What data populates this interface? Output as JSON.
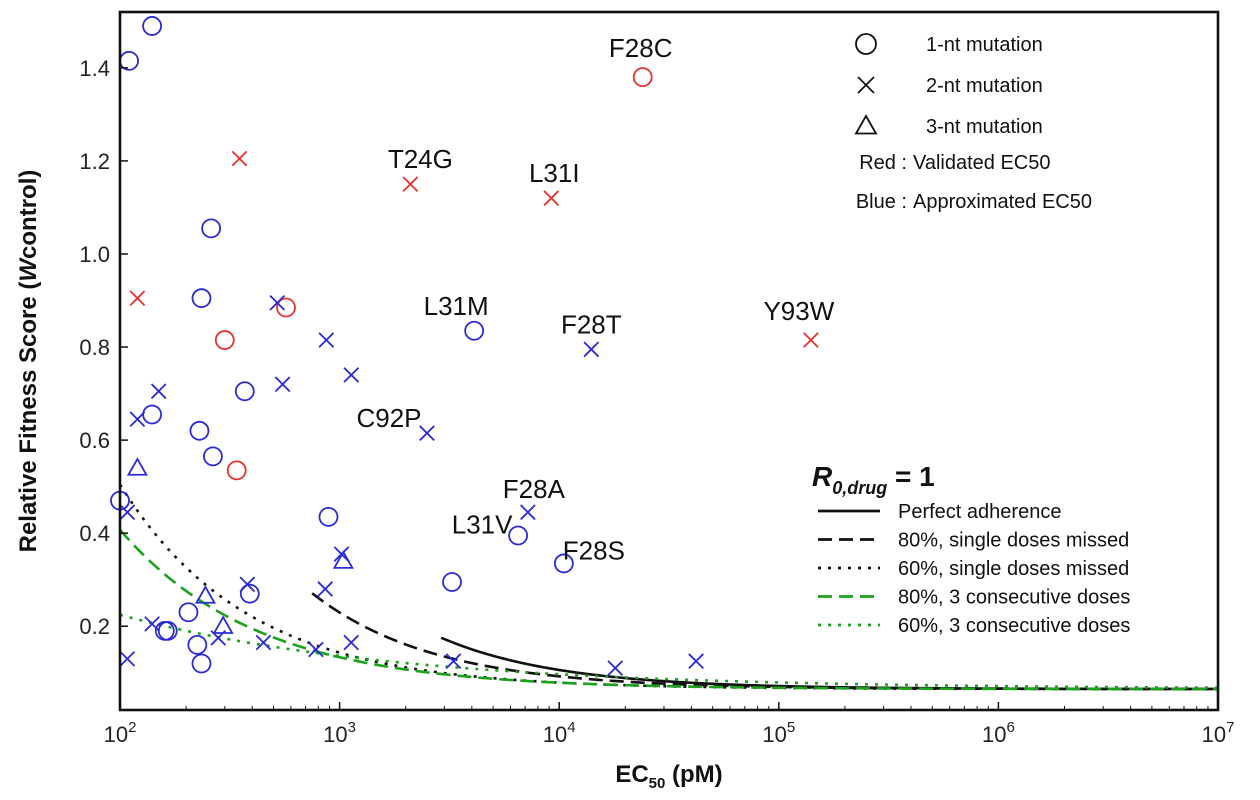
{
  "chart_data": {
    "type": "scatter",
    "x_scale": "log",
    "xlim": [
      100,
      10000000
    ],
    "ylim": [
      0.02,
      1.52
    ],
    "x_ticks": [
      {
        "value": 100,
        "base": "10",
        "exp": "2"
      },
      {
        "value": 1000,
        "base": "10",
        "exp": "3"
      },
      {
        "value": 10000,
        "base": "10",
        "exp": "4"
      },
      {
        "value": 100000,
        "base": "10",
        "exp": "5"
      },
      {
        "value": 1000000,
        "base": "10",
        "exp": "6"
      },
      {
        "value": 10000000,
        "base": "10",
        "exp": "7"
      }
    ],
    "y_ticks": [
      "0.2",
      "0.4",
      "0.6",
      "0.8",
      "1.0",
      "1.2",
      "1.4"
    ],
    "xlabel": {
      "main": "EC",
      "sub": "50",
      "unit": " (pM)"
    },
    "ylabel": {
      "pre": "Relative Fitness Score (",
      "italic": "W",
      "post": "control)"
    },
    "colors": {
      "validated": "#e8322f",
      "approximated": "#2b2bd6",
      "green": "#1aa31a",
      "black": "#111111"
    },
    "marker_legend": [
      {
        "marker": "circle",
        "label": "1-nt mutation"
      },
      {
        "marker": "cross",
        "label": "2-nt mutation"
      },
      {
        "marker": "triangle",
        "label": "3-nt mutation"
      }
    ],
    "color_legend": [
      {
        "key": "Red :",
        "label": "Validated EC50",
        "color": "validated"
      },
      {
        "key": "Blue :",
        "label": "Approximated EC50",
        "color": "approximated"
      }
    ],
    "curve_legend_title": {
      "main": "R",
      "sub": "0,drug",
      "suffix": " = 1"
    },
    "curves": [
      {
        "name": "Perfect adherence",
        "color": "black",
        "dash": "solid",
        "width": 2.6,
        "a": 0.065,
        "b": 65,
        "c": 0.8,
        "x0": 2900,
        "xmax": 10000000
      },
      {
        "name": "80%, single doses missed",
        "color": "black",
        "dash": "dashed",
        "width": 2.6,
        "a": 0.065,
        "b": 36,
        "c": 0.78,
        "x0": 750,
        "xmax": 10000000
      },
      {
        "name": "60%, single doses missed",
        "color": "black",
        "dash": "dotted",
        "width": 2.6,
        "a": 0.065,
        "b": 13.9,
        "c": 0.75,
        "x0": 100,
        "xmax": 10000000
      },
      {
        "name": "80%, 3 consecutive doses",
        "color": "green",
        "dash": "dashed",
        "width": 2.6,
        "a": 0.065,
        "b": 8.6,
        "c": 0.7,
        "x0": 100,
        "xmax": 10000000
      },
      {
        "name": "60%, 3 consecutive doses",
        "color": "green",
        "dash": "dotted",
        "width": 2.6,
        "a": 0.065,
        "b": 0.8,
        "c": 0.35,
        "x0": 100,
        "xmax": 10000000
      }
    ],
    "points": [
      {
        "x": 24000,
        "y": 1.38,
        "marker": "circle",
        "color": "validated",
        "label": "F28C",
        "label_dx": -2,
        "label_dy": -20
      },
      {
        "x": 2100,
        "y": 1.15,
        "marker": "cross",
        "color": "validated",
        "label": "T24G",
        "label_dx": 10,
        "label_dy": -16
      },
      {
        "x": 9200,
        "y": 1.12,
        "marker": "cross",
        "color": "validated",
        "label": "L31I",
        "label_dx": 3,
        "label_dy": -16
      },
      {
        "x": 4100,
        "y": 0.835,
        "marker": "circle",
        "color": "approximated",
        "label": "L31M",
        "label_dx": -18,
        "label_dy": -16
      },
      {
        "x": 14000,
        "y": 0.795,
        "marker": "cross",
        "color": "approximated",
        "label": "F28T",
        "label_dx": 0,
        "label_dy": -16
      },
      {
        "x": 140000,
        "y": 0.815,
        "marker": "cross",
        "color": "validated",
        "label": "Y93W",
        "label_dx": -12,
        "label_dy": -20
      },
      {
        "x": 2500,
        "y": 0.615,
        "marker": "cross",
        "color": "approximated",
        "label": "C92P",
        "label_dx": -38,
        "label_dy": -6
      },
      {
        "x": 7200,
        "y": 0.445,
        "marker": "cross",
        "color": "approximated",
        "label": "F28A",
        "label_dx": 6,
        "label_dy": -14
      },
      {
        "x": 6500,
        "y": 0.395,
        "marker": "circle",
        "color": "approximated",
        "label": "L31V",
        "label_dx": -36,
        "label_dy": -2
      },
      {
        "x": 10500,
        "y": 0.335,
        "marker": "circle",
        "color": "approximated",
        "label": "F28S",
        "label_dx": 30,
        "label_dy": -4
      },
      {
        "x": 350,
        "y": 1.205,
        "marker": "cross",
        "color": "validated"
      },
      {
        "x": 120,
        "y": 0.905,
        "marker": "cross",
        "color": "validated"
      },
      {
        "x": 300,
        "y": 0.815,
        "marker": "circle",
        "color": "validated"
      },
      {
        "x": 570,
        "y": 0.885,
        "marker": "circle",
        "color": "validated"
      },
      {
        "x": 340,
        "y": 0.535,
        "marker": "circle",
        "color": "validated"
      },
      {
        "x": 140,
        "y": 1.49,
        "marker": "circle",
        "color": "approximated"
      },
      {
        "x": 110,
        "y": 1.415,
        "marker": "circle",
        "color": "approximated"
      },
      {
        "x": 260,
        "y": 1.055,
        "marker": "circle",
        "color": "approximated"
      },
      {
        "x": 235,
        "y": 0.905,
        "marker": "circle",
        "color": "approximated"
      },
      {
        "x": 520,
        "y": 0.895,
        "marker": "cross",
        "color": "approximated"
      },
      {
        "x": 870,
        "y": 0.815,
        "marker": "cross",
        "color": "approximated"
      },
      {
        "x": 1130,
        "y": 0.74,
        "marker": "cross",
        "color": "approximated"
      },
      {
        "x": 550,
        "y": 0.72,
        "marker": "cross",
        "color": "approximated"
      },
      {
        "x": 370,
        "y": 0.705,
        "marker": "circle",
        "color": "approximated"
      },
      {
        "x": 150,
        "y": 0.705,
        "marker": "cross",
        "color": "approximated"
      },
      {
        "x": 140,
        "y": 0.655,
        "marker": "circle",
        "color": "approximated"
      },
      {
        "x": 120,
        "y": 0.645,
        "marker": "cross",
        "color": "approximated"
      },
      {
        "x": 230,
        "y": 0.62,
        "marker": "circle",
        "color": "approximated"
      },
      {
        "x": 265,
        "y": 0.565,
        "marker": "circle",
        "color": "approximated"
      },
      {
        "x": 120,
        "y": 0.54,
        "marker": "triangle",
        "color": "approximated"
      },
      {
        "x": 100,
        "y": 0.47,
        "marker": "circle",
        "color": "approximated"
      },
      {
        "x": 108,
        "y": 0.445,
        "marker": "cross",
        "color": "approximated"
      },
      {
        "x": 890,
        "y": 0.435,
        "marker": "circle",
        "color": "approximated"
      },
      {
        "x": 1020,
        "y": 0.355,
        "marker": "cross",
        "color": "approximated"
      },
      {
        "x": 1040,
        "y": 0.34,
        "marker": "triangle",
        "color": "approximated"
      },
      {
        "x": 3250,
        "y": 0.295,
        "marker": "circle",
        "color": "approximated"
      },
      {
        "x": 380,
        "y": 0.29,
        "marker": "cross",
        "color": "approximated"
      },
      {
        "x": 390,
        "y": 0.27,
        "marker": "circle",
        "color": "approximated"
      },
      {
        "x": 860,
        "y": 0.28,
        "marker": "cross",
        "color": "approximated"
      },
      {
        "x": 245,
        "y": 0.265,
        "marker": "triangle",
        "color": "approximated"
      },
      {
        "x": 205,
        "y": 0.23,
        "marker": "circle",
        "color": "approximated"
      },
      {
        "x": 140,
        "y": 0.205,
        "marker": "cross",
        "color": "approximated"
      },
      {
        "x": 165,
        "y": 0.19,
        "marker": "circle",
        "color": "approximated"
      },
      {
        "x": 160,
        "y": 0.19,
        "marker": "circle",
        "color": "approximated"
      },
      {
        "x": 295,
        "y": 0.2,
        "marker": "triangle",
        "color": "approximated"
      },
      {
        "x": 280,
        "y": 0.175,
        "marker": "cross",
        "color": "approximated"
      },
      {
        "x": 225,
        "y": 0.16,
        "marker": "circle",
        "color": "approximated"
      },
      {
        "x": 450,
        "y": 0.165,
        "marker": "cross",
        "color": "approximated"
      },
      {
        "x": 1130,
        "y": 0.165,
        "marker": "cross",
        "color": "approximated"
      },
      {
        "x": 780,
        "y": 0.15,
        "marker": "cross",
        "color": "approximated"
      },
      {
        "x": 108,
        "y": 0.13,
        "marker": "cross",
        "color": "approximated"
      },
      {
        "x": 235,
        "y": 0.12,
        "marker": "circle",
        "color": "approximated"
      },
      {
        "x": 3300,
        "y": 0.125,
        "marker": "cross",
        "color": "approximated"
      },
      {
        "x": 18000,
        "y": 0.11,
        "marker": "cross",
        "color": "approximated"
      },
      {
        "x": 42000,
        "y": 0.125,
        "marker": "cross",
        "color": "approximated"
      }
    ]
  }
}
